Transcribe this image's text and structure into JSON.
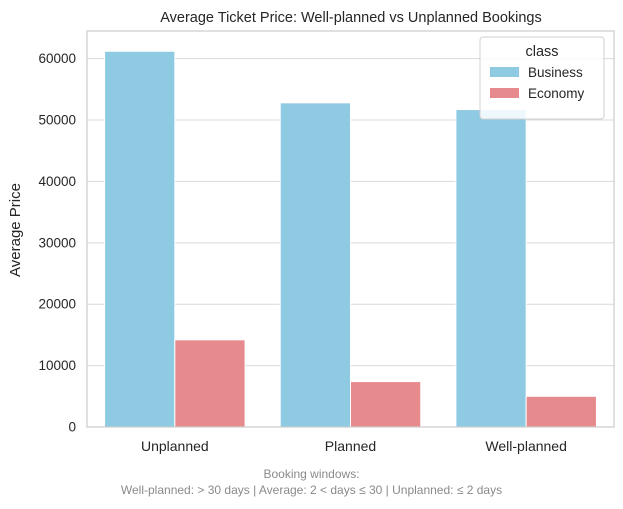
{
  "chart_data": {
    "type": "bar",
    "title": "Average Ticket Price: Well-planned vs Unplanned Bookings",
    "xlabel": "",
    "ylabel": "Average Price",
    "categories": [
      "Unplanned",
      "Planned",
      "Well-planned"
    ],
    "series": [
      {
        "name": "Business",
        "values": [
          61200,
          52800,
          51700
        ],
        "color": "#8ecae2"
      },
      {
        "name": "Economy",
        "values": [
          14200,
          7400,
          5000
        ],
        "color": "#e68a8e"
      }
    ],
    "ylim": [
      0,
      64500
    ],
    "yticks": [
      0,
      10000,
      20000,
      30000,
      40000,
      50000,
      60000
    ],
    "ytick_labels": [
      "0",
      "10000",
      "20000",
      "30000",
      "40000",
      "50000",
      "60000"
    ],
    "grid": true,
    "legend": {
      "title": "class",
      "placement": "top-right"
    }
  },
  "caption": {
    "line1": "Booking windows:",
    "line2": "Well-planned: > 30 days | Average: 2 < days ≤ 30 | Unplanned: ≤ 2 days"
  }
}
